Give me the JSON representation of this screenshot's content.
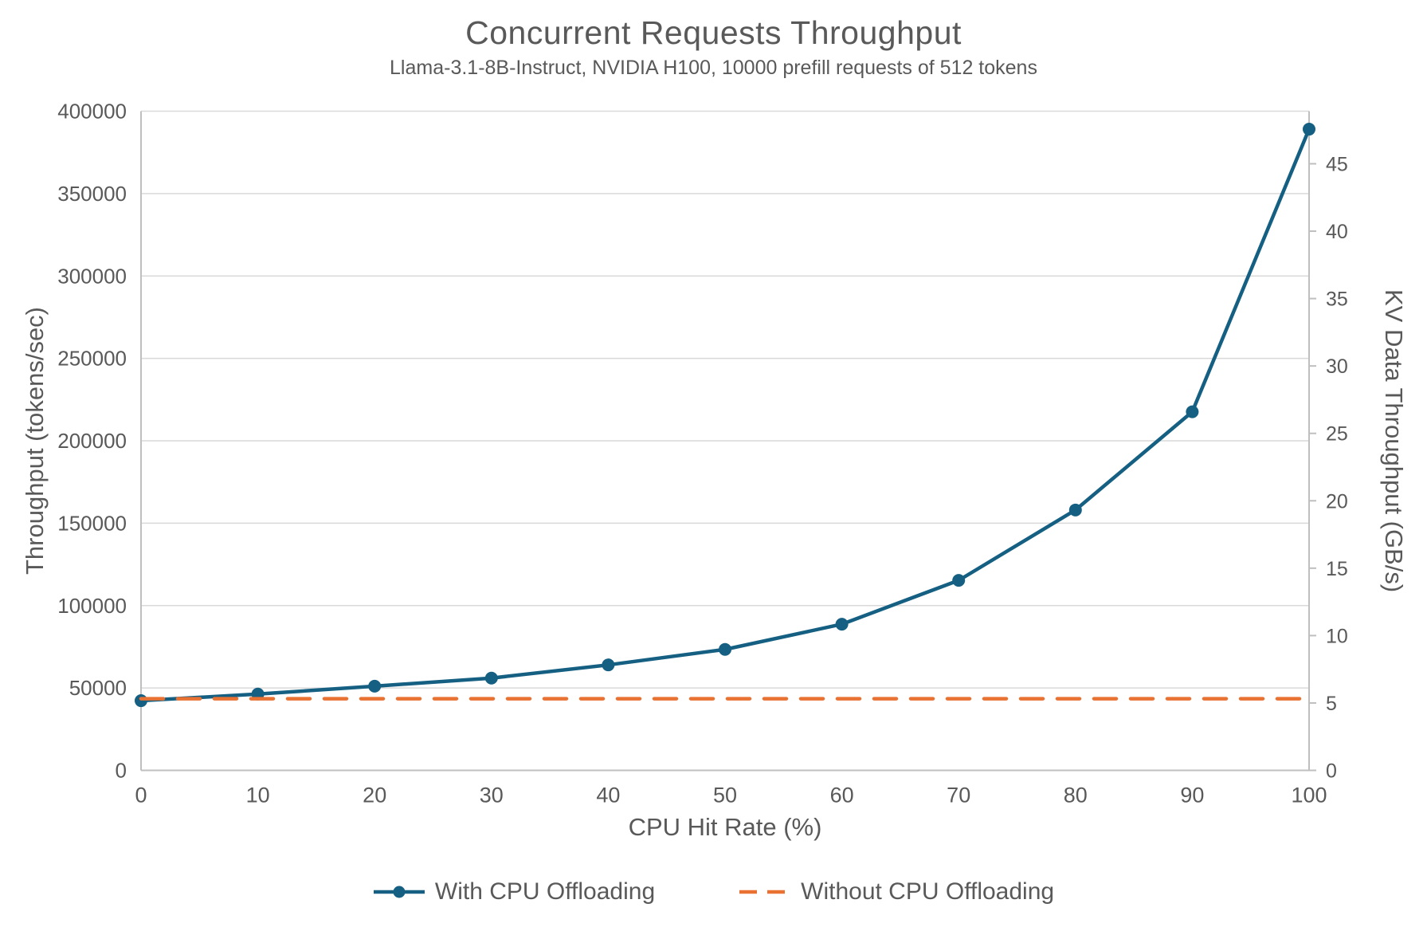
{
  "chart_data": {
    "type": "line",
    "title": "Concurrent Requests Throughput",
    "subtitle": "Llama-3.1-8B-Instruct, NVIDIA H100, 10000 prefill requests of 512 tokens",
    "xlabel": "CPU Hit Rate (%)",
    "ylabel_left": "Throughput (tokens/sec)",
    "ylabel_right": "KV Data Throughput (GB/s)",
    "x": [
      0,
      10,
      20,
      30,
      40,
      50,
      60,
      70,
      80,
      90,
      100
    ],
    "series": [
      {
        "name": "With CPU Offloading",
        "axis": "left",
        "color": "#156082",
        "style": "solid-markers",
        "values": [
          42300,
          46300,
          51100,
          56000,
          64000,
          73400,
          88700,
          115300,
          158000,
          217600,
          389100
        ],
        "equivalent_right_axis_gbps": [
          5.2,
          5.7,
          6.2,
          6.8,
          7.8,
          9.0,
          10.8,
          14.1,
          19.3,
          26.6,
          47.6
        ]
      },
      {
        "name": "Without CPU Offloading",
        "axis": "left",
        "color": "#E97132",
        "style": "dashed",
        "values": [
          43500,
          43500,
          43500,
          43500,
          43500,
          43500,
          43500,
          43500,
          43500,
          43500,
          43500
        ]
      }
    ],
    "xlim": [
      0,
      100
    ],
    "ylim_left": [
      0,
      400000
    ],
    "ylim_right": [
      0,
      48.9
    ],
    "xticks": [
      0,
      10,
      20,
      30,
      40,
      50,
      60,
      70,
      80,
      90,
      100
    ],
    "yticks_left": [
      0,
      50000,
      100000,
      150000,
      200000,
      250000,
      300000,
      350000,
      400000
    ],
    "yticks_right": [
      0,
      5,
      10,
      15,
      20,
      25,
      30,
      35,
      40,
      45
    ],
    "grid": "horizontal",
    "legend_position": "bottom",
    "colors": {
      "text": "#595959",
      "gridline": "#D9D9D9",
      "axis_line": "#BFBFBF"
    }
  }
}
